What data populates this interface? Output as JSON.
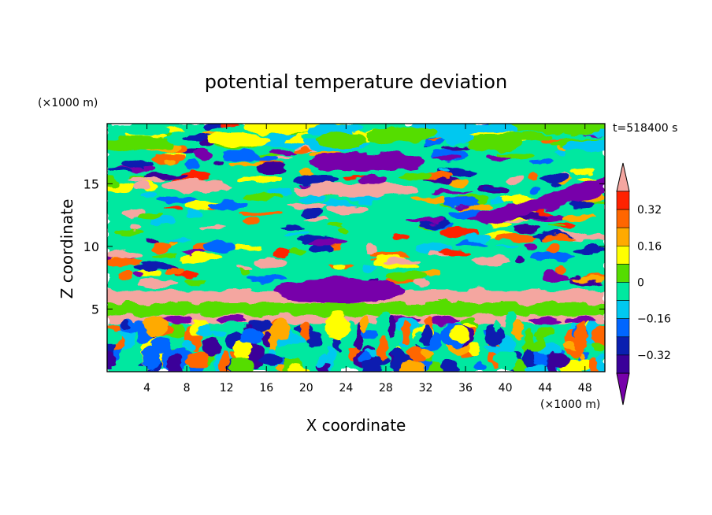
{
  "chart_data": {
    "type": "heatmap",
    "title": "potential temperature deviation",
    "xlabel": "X coordinate",
    "ylabel": "Z coordinate",
    "x_unit": "(×1000 m)",
    "y_unit": "(×1000 m)",
    "time_label": "t=518400 s",
    "xlim": [
      0,
      50
    ],
    "ylim": [
      0,
      19.8
    ],
    "x_ticks": [
      4,
      8,
      12,
      16,
      20,
      24,
      28,
      32,
      36,
      40,
      44,
      48
    ],
    "y_ticks": [
      5,
      10,
      15
    ],
    "colorbar": {
      "levels": [
        -0.4,
        -0.32,
        -0.24,
        -0.16,
        -0.08,
        0,
        0.08,
        0.16,
        0.24,
        0.32,
        0.4
      ],
      "tick_labels": [
        "0.32",
        "0.16",
        "0",
        "−0.16",
        "−0.32"
      ],
      "tick_values": [
        0.32,
        0.16,
        0,
        -0.16,
        -0.32
      ],
      "colors": [
        "#7700aa",
        "#3a0099",
        "#0a1fb0",
        "#0066ff",
        "#00c8f0",
        "#00e8a0",
        "#55dd00",
        "#ffff00",
        "#ffaa00",
        "#ff6600",
        "#ff2200",
        "#f4a6a0"
      ],
      "extend": "both"
    },
    "features": [
      {
        "name": "upper-negative-band",
        "x_range": [
          20,
          32
        ],
        "z_range": [
          16,
          17.5
        ],
        "sign": "negative"
      },
      {
        "name": "diagonal-negative-band",
        "x_range": [
          36,
          50
        ],
        "z_range": [
          12,
          15.5
        ],
        "sign": "negative"
      },
      {
        "name": "mid-negative-layer",
        "x_range": [
          17,
          30
        ],
        "z_range": [
          5.5,
          7.5
        ],
        "sign": "negative"
      },
      {
        "name": "positive-layer-z6",
        "x_range": [
          0,
          50
        ],
        "z_range": [
          5.5,
          6.5
        ],
        "sign": "positive"
      },
      {
        "name": "positive-layer-z4",
        "x_range": [
          0,
          50
        ],
        "z_range": [
          3.8,
          4.5
        ],
        "sign": "positive"
      },
      {
        "name": "boundary-layer-plumes",
        "x_range": [
          0,
          50
        ],
        "z_range": [
          0,
          3.8
        ],
        "sign": "mixed"
      }
    ]
  }
}
